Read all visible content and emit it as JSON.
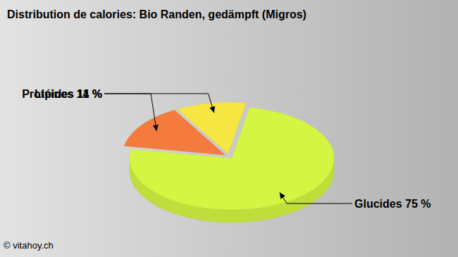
{
  "chart_data": {
    "type": "pie",
    "title": "Distribution de calories: Bio Randen, gedämpft (Migros)",
    "categories": [
      "Glucides",
      "Protéines",
      "Lipides"
    ],
    "values": [
      75,
      14,
      11
    ],
    "value_labels": [
      "75 %",
      "14 %",
      "11 %"
    ],
    "colors": [
      "#d4f542",
      "#f47a3e",
      "#f5e642"
    ],
    "data_labels": true,
    "source": "© vitahoy.ch"
  }
}
